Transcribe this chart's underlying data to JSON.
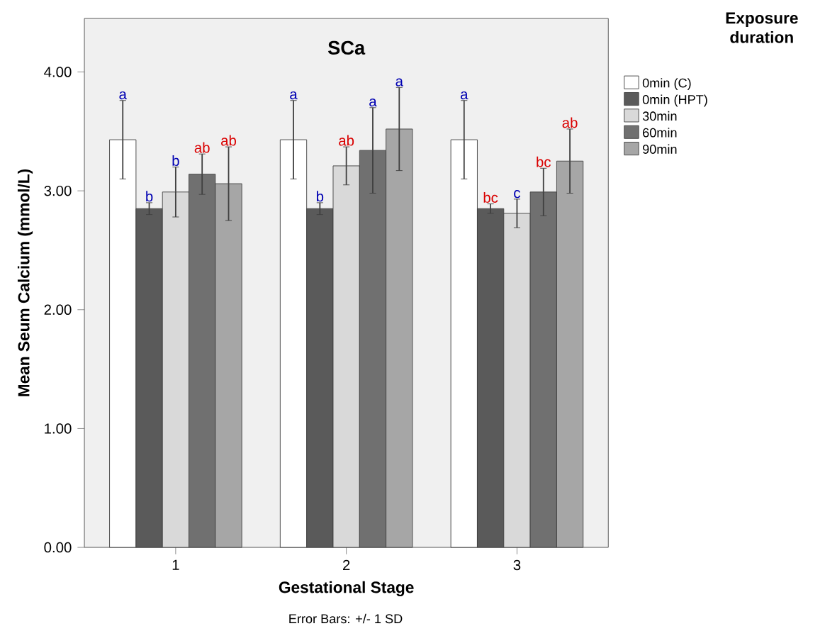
{
  "chart_data": {
    "type": "bar",
    "title": "SCa",
    "xlabel": "Gestational Stage",
    "ylabel": "Mean Seum Calcium (mmol/L)",
    "legend_title": "Exposure duration",
    "categories": [
      "1",
      "2",
      "3"
    ],
    "series": [
      {
        "name": "0min (C)",
        "color": "#ffffff",
        "values": [
          3.43,
          3.43,
          3.43
        ],
        "errors": [
          0.33,
          0.33,
          0.33
        ]
      },
      {
        "name": "0min (HPT)",
        "color": "#5a5a5a",
        "values": [
          2.85,
          2.85,
          2.85
        ],
        "errors": [
          0.05,
          0.05,
          0.04
        ]
      },
      {
        "name": "30min",
        "color": "#d9d9d9",
        "values": [
          2.99,
          3.21,
          2.81
        ],
        "errors": [
          0.21,
          0.16,
          0.12
        ]
      },
      {
        "name": "60min",
        "color": "#707070",
        "values": [
          3.14,
          3.34,
          2.99
        ],
        "errors": [
          0.17,
          0.36,
          0.2
        ]
      },
      {
        "name": "90min",
        "color": "#a6a6a6",
        "values": [
          3.06,
          3.52,
          3.25
        ],
        "errors": [
          0.31,
          0.35,
          0.27
        ]
      }
    ],
    "ylim": [
      0,
      4.45
    ],
    "yticks": [
      {
        "value": 0,
        "label": "0.00"
      },
      {
        "value": 1,
        "label": "1.00"
      },
      {
        "value": 2,
        "label": "2.00"
      },
      {
        "value": 3,
        "label": "3.00"
      },
      {
        "value": 4,
        "label": "4.00"
      }
    ],
    "legend": "right",
    "grid": false,
    "annotations": [
      "a",
      "b",
      "b",
      "ab",
      "ab",
      "a",
      "b",
      "ab",
      "a",
      "a",
      "a",
      "bc",
      "c",
      "bc",
      "ab",
      "Error Bars: +/- 1 SD"
    ]
  }
}
